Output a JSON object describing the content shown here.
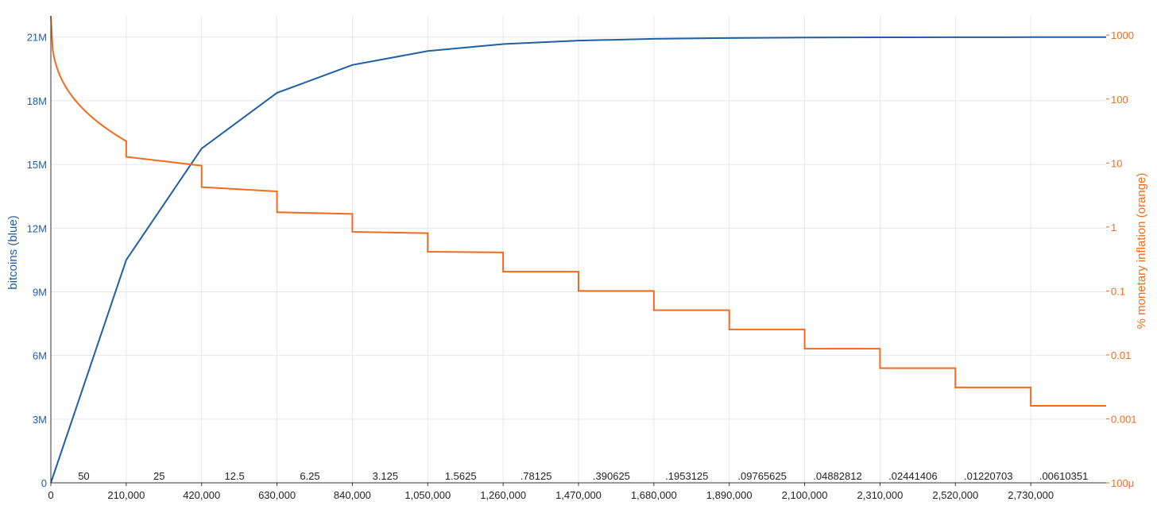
{
  "chart_data": {
    "type": "line",
    "xlabel": "",
    "x_ticks": [
      0,
      210000,
      420000,
      630000,
      840000,
      1050000,
      1260000,
      1470000,
      1680000,
      1890000,
      2100000,
      2310000,
      2520000,
      2730000
    ],
    "x_tick_labels": [
      "0",
      "210,000",
      "420,000",
      "630,000",
      "840,000",
      "1,050,000",
      "1,260,000",
      "1,470,000",
      "1,680,000",
      "1,890,000",
      "2,100,000",
      "2,310,000",
      "2,520,000",
      "2,730,000"
    ],
    "xlim": [
      0,
      2940000
    ],
    "y_left": {
      "label": "bitcoins (blue)",
      "ylim": [
        0,
        22000000
      ],
      "ticks": [
        0,
        3000000,
        6000000,
        9000000,
        12000000,
        15000000,
        18000000,
        21000000
      ],
      "tick_labels": [
        "0",
        "3M",
        "6M",
        "9M",
        "12M",
        "15M",
        "18M",
        "21M"
      ],
      "color": "#1f5fa6"
    },
    "y_right": {
      "label": "% monetary inflation (orange)",
      "scale": "log",
      "ylim": [
        0.0001,
        2000
      ],
      "ticks": [
        0.0001,
        0.001,
        0.01,
        0.1,
        1,
        10,
        100,
        1000
      ],
      "tick_labels": [
        "100μ",
        "0.001",
        "0.01",
        "0.1",
        "1",
        "10",
        "100",
        "1000"
      ],
      "color": "#f26b1d"
    },
    "reward_labels": [
      "50",
      "25",
      "12.5",
      "6.25",
      "3.125",
      "1.5625",
      ".78125",
      ".390625",
      ".1953125",
      ".09765625",
      ".04882812",
      ".02441406",
      ".01220703",
      ".00610351"
    ],
    "grid": true,
    "series": [
      {
        "name": "bitcoins (blue)",
        "axis": "left",
        "color": "#1f5fa6",
        "x": [
          0,
          210000,
          420000,
          630000,
          840000,
          1050000,
          1260000,
          1470000,
          1680000,
          1890000,
          2100000,
          2310000,
          2520000,
          2730000,
          2940000
        ],
        "values": [
          0,
          10500000,
          15750000,
          18375000,
          19687500,
          20343750,
          20671875,
          20835938,
          20917969,
          20958984,
          20979492,
          20989746,
          20994873,
          20997437,
          20998718
        ]
      },
      {
        "name": "% monetary inflation (orange)",
        "axis": "right",
        "color": "#f26b1d",
        "x_start": 0,
        "x_end": 2940000,
        "step_values": [
          [
            2000,
            22
          ],
          [
            12.5,
            9.1
          ],
          [
            4.2,
            3.6
          ],
          [
            1.7,
            1.6
          ],
          [
            0.84,
            0.8
          ],
          [
            0.41,
            0.4
          ],
          [
            0.2,
            0.2
          ],
          [
            0.1,
            0.1
          ],
          [
            0.05,
            0.05
          ],
          [
            0.025,
            0.025
          ],
          [
            0.0125,
            0.0125
          ],
          [
            0.0062,
            0.0062
          ],
          [
            0.0031,
            0.0031
          ],
          [
            0.0016,
            0.0016
          ]
        ]
      }
    ]
  }
}
